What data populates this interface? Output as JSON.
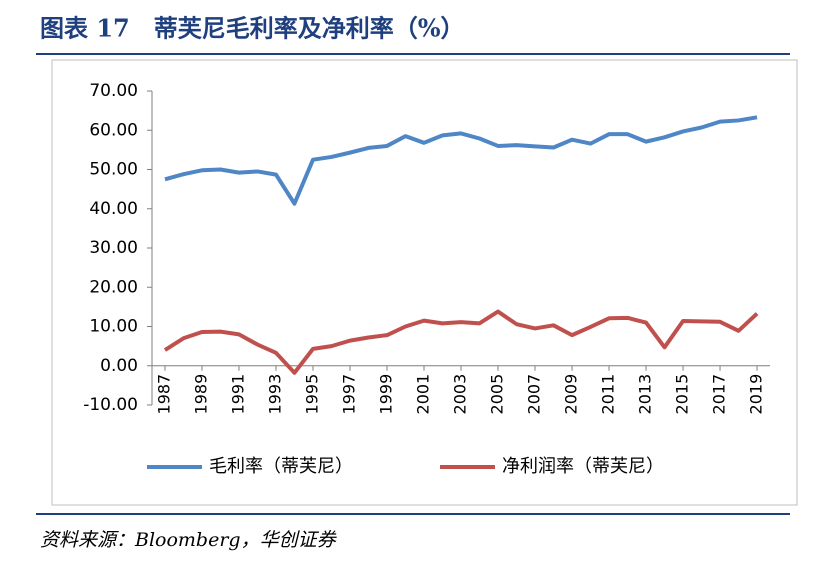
{
  "chart_data": {
    "type": "line",
    "title": "图表 17　蒂芙尼毛利率及净利率（%）",
    "source": "资料来源：Bloomberg，华创证券",
    "x": [
      1987,
      1988,
      1989,
      1990,
      1991,
      1992,
      1993,
      1994,
      1995,
      1996,
      1997,
      1998,
      1999,
      2000,
      2001,
      2002,
      2003,
      2004,
      2005,
      2006,
      2007,
      2008,
      2009,
      2010,
      2011,
      2012,
      2013,
      2014,
      2015,
      2016,
      2017,
      2018,
      2019
    ],
    "xlim": [
      1986.3,
      2019.7
    ],
    "xticks": [
      1987,
      1989,
      1991,
      1993,
      1995,
      1997,
      1999,
      2001,
      2003,
      2005,
      2007,
      2009,
      2011,
      2013,
      2015,
      2017,
      2019
    ],
    "ylim": [
      -10,
      70
    ],
    "yticks": [
      {
        "value": -10,
        "label": "-10.00"
      },
      {
        "value": 0,
        "label": "0.00"
      },
      {
        "value": 10,
        "label": "10.00"
      },
      {
        "value": 20,
        "label": "20.00"
      },
      {
        "value": 30,
        "label": "30.00"
      },
      {
        "value": 40,
        "label": "40.00"
      },
      {
        "value": 50,
        "label": "50.00"
      },
      {
        "value": 60,
        "label": "60.00"
      },
      {
        "value": 70,
        "label": "70.00"
      }
    ],
    "grid": false,
    "legend": "bottom",
    "series": [
      {
        "name": "毛利率（蒂芙尼）",
        "color": "#4f86c6",
        "values": [
          47.5,
          48.8,
          49.8,
          50.0,
          49.2,
          49.5,
          48.7,
          41.3,
          52.5,
          53.2,
          54.3,
          55.5,
          56.0,
          58.5,
          56.8,
          58.7,
          59.2,
          57.9,
          56.0,
          56.2,
          55.9,
          55.6,
          57.6,
          56.6,
          59.0,
          59.0,
          57.1,
          58.2,
          59.7,
          60.7,
          62.2,
          62.5,
          63.3
        ]
      },
      {
        "name": "净利润率（蒂芙尼）",
        "color": "#c0504d",
        "values": [
          4.0,
          7.0,
          8.6,
          8.7,
          8.0,
          5.4,
          3.3,
          -1.8,
          4.3,
          5.0,
          6.4,
          7.2,
          7.8,
          10.0,
          11.5,
          10.8,
          11.1,
          10.8,
          13.8,
          10.6,
          9.5,
          10.3,
          7.8,
          9.9,
          12.1,
          12.2,
          11.0,
          4.7,
          11.4,
          11.3,
          11.2,
          8.9,
          13.3
        ]
      }
    ]
  }
}
